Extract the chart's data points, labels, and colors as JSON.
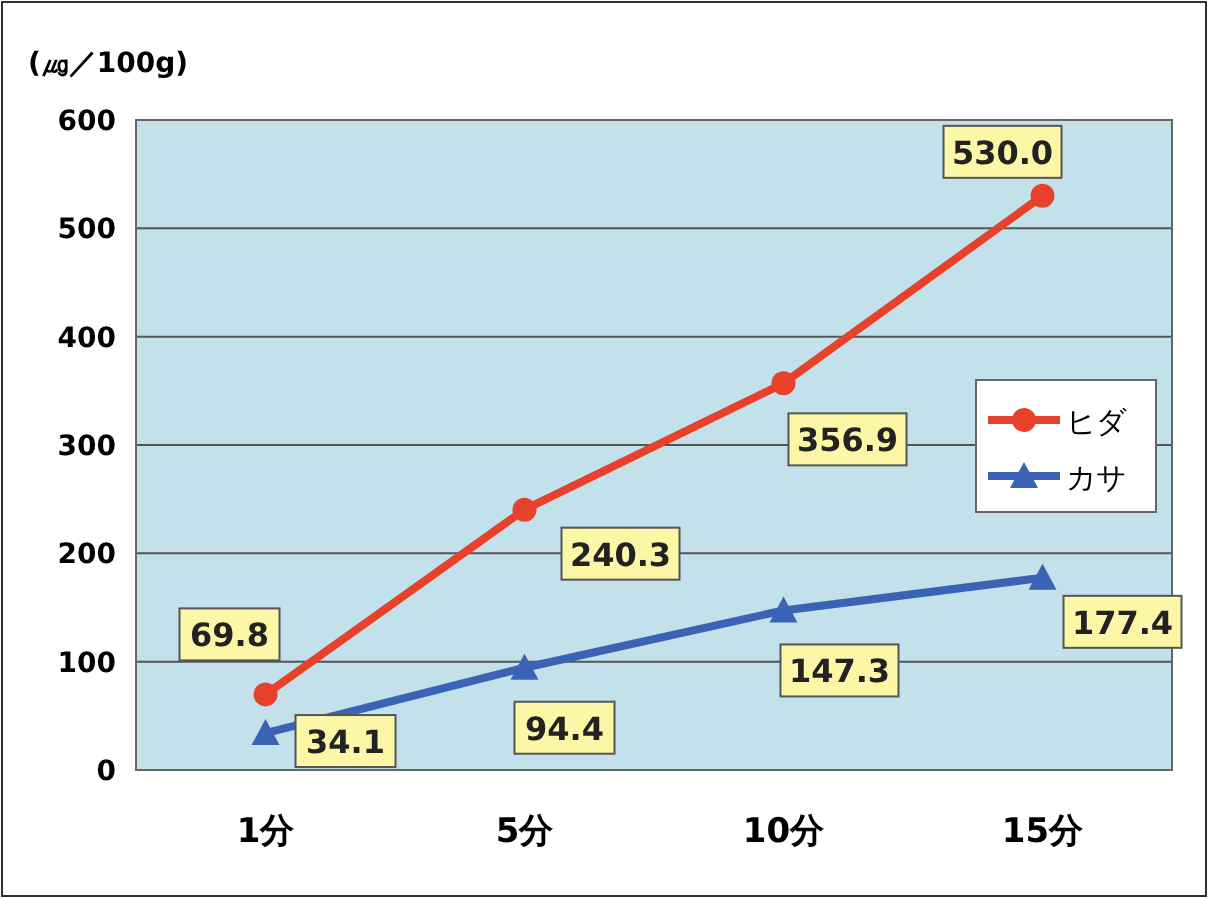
{
  "chart_data": {
    "type": "line",
    "ylabel": "(㎍／100g)",
    "categories": [
      "1分",
      "5分",
      "10分",
      "15分"
    ],
    "series": [
      {
        "name": "ヒダ",
        "color": "#e8412b",
        "marker": "circle",
        "values": [
          69.8,
          240.3,
          356.9,
          530.0
        ],
        "value_labels": [
          "69.8",
          "240.3",
          "356.9",
          "530.0"
        ]
      },
      {
        "name": "カサ",
        "color": "#3b63b5",
        "marker": "triangle",
        "values": [
          34.1,
          94.4,
          147.3,
          177.4
        ],
        "value_labels": [
          "34.1",
          "94.4",
          "147.3",
          "177.4"
        ]
      }
    ],
    "ylim": [
      0,
      600
    ],
    "yticks": [
      0,
      100,
      200,
      300,
      400,
      500,
      600
    ],
    "grid": "y",
    "legend": "right",
    "line_style": "solid"
  }
}
